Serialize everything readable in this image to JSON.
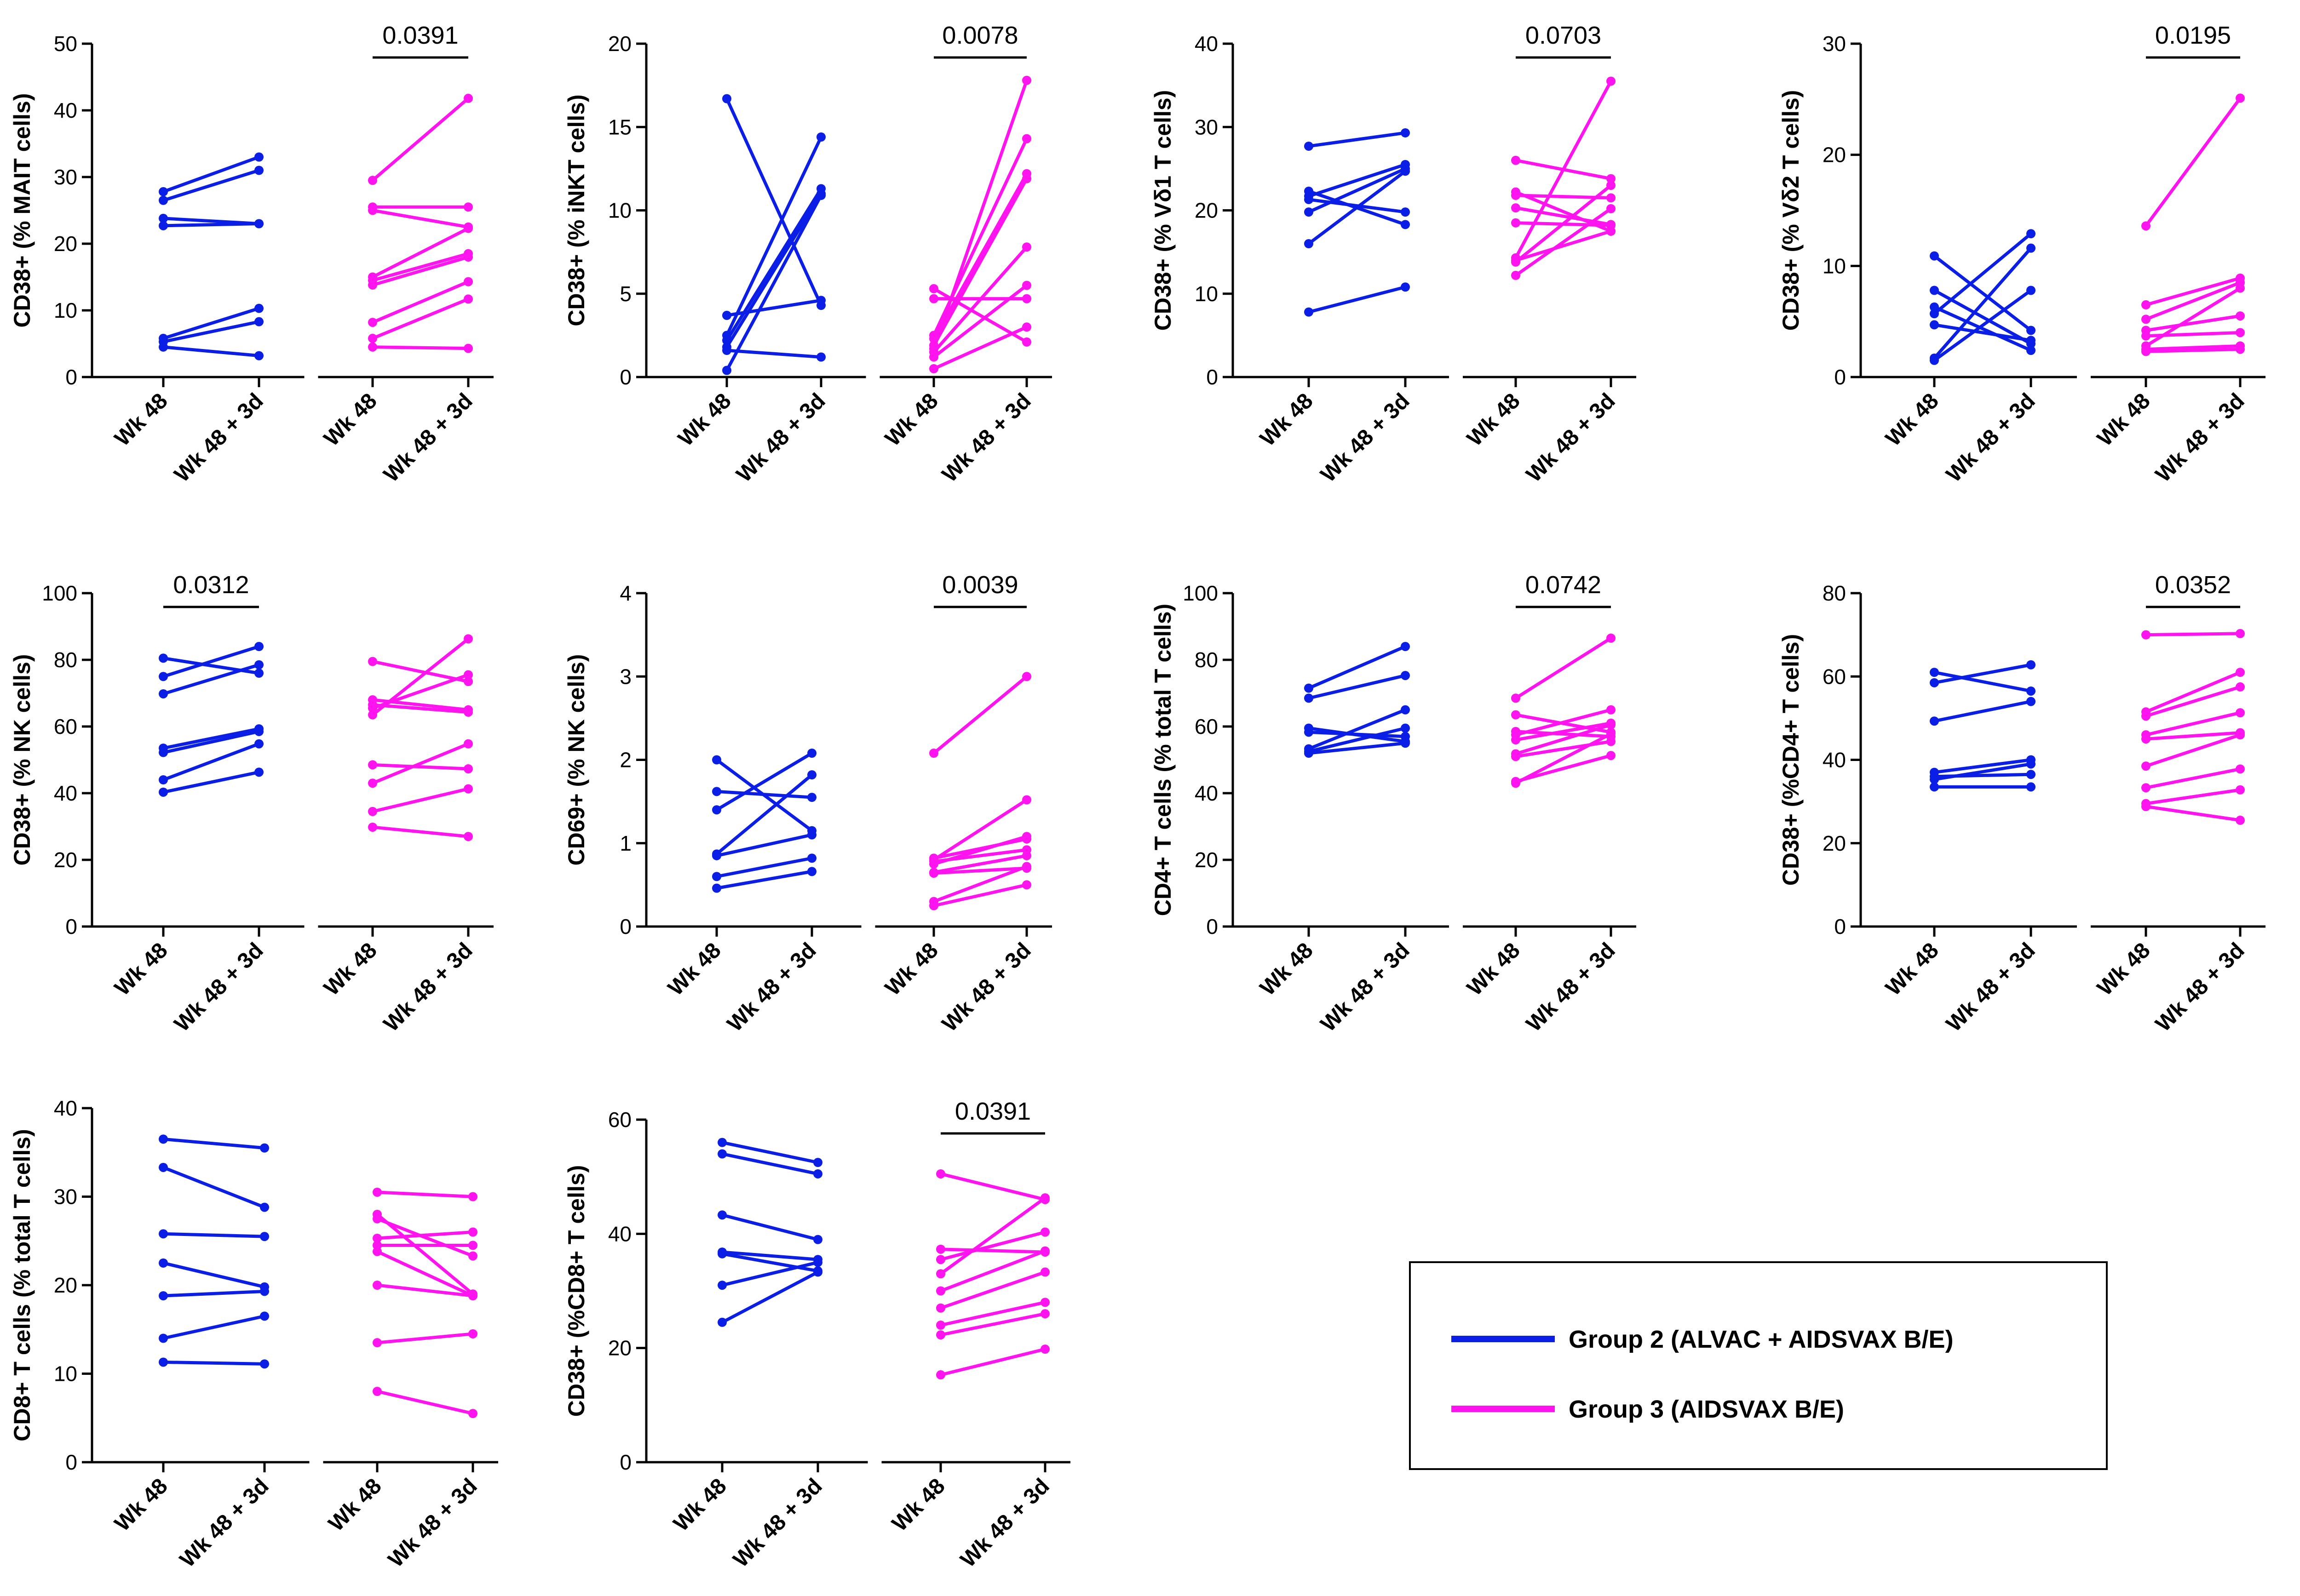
{
  "colors": {
    "group2": "#0a1ee6",
    "group3": "#ff14f0"
  },
  "legend": {
    "entries": [
      {
        "label": "Group 2 (ALVAC + AIDSVAX B/E)",
        "color": "#0a1ee6"
      },
      {
        "label": "Group 3 (AIDSVAX B/E)",
        "color": "#ff14f0"
      }
    ]
  },
  "chart_data": [
    {
      "type": "line",
      "ylabel": "CD38+ (% MAIT cells)",
      "ylim": [
        0,
        50
      ],
      "yticks": [
        0,
        10,
        20,
        30,
        40,
        50
      ],
      "categories": [
        "Wk 48",
        "Wk 48 + 3d",
        "Wk 48",
        "Wk 48 + 3d"
      ],
      "series": [
        {
          "name": "Group 2 (ALVAC + AIDSVAX B/E)",
          "pairs": [
            [
              27.8,
              33
            ],
            [
              26.5,
              31
            ],
            [
              23.8,
              23
            ],
            [
              22.7,
              23
            ],
            [
              5.8,
              10.3
            ],
            [
              5.3,
              8.3
            ],
            [
              4.5,
              3.2
            ]
          ]
        },
        {
          "name": "Group 3 (AIDSVAX B/E)",
          "pairs": [
            [
              29.5,
              41.8
            ],
            [
              25.5,
              25.5
            ],
            [
              25,
              22.5
            ],
            [
              15,
              22.3
            ],
            [
              14.5,
              18.5
            ],
            [
              13.8,
              18
            ],
            [
              8.2,
              14.3
            ],
            [
              5.8,
              11.7
            ],
            [
              4.5,
              4.3
            ]
          ]
        }
      ],
      "pvalue": {
        "text": "0.0391",
        "group": 2
      }
    },
    {
      "type": "line",
      "ylabel": "CD38+ (% iNKT cells)",
      "ylim": [
        0,
        20
      ],
      "yticks": [
        0,
        5,
        10,
        15,
        20
      ],
      "categories": [
        "Wk 48",
        "Wk 48 + 3d",
        "Wk 48",
        "Wk 48 + 3d"
      ],
      "series": [
        {
          "name": "Group 2 (ALVAC + AIDSVAX B/E)",
          "pairs": [
            [
              16.7,
              4.3
            ],
            [
              3.7,
              4.6
            ],
            [
              2.5,
              14.4
            ],
            [
              2.2,
              11.3
            ],
            [
              1.8,
              11.0
            ],
            [
              1.6,
              1.2
            ],
            [
              0.4,
              10.9
            ]
          ]
        },
        {
          "name": "Group 3 (AIDSVAX B/E)",
          "pairs": [
            [
              5.3,
              2.1
            ],
            [
              4.7,
              4.7
            ],
            [
              2.5,
              14.3
            ],
            [
              2.3,
              12.2
            ],
            [
              1.9,
              11.9
            ],
            [
              1.7,
              17.8
            ],
            [
              1.5,
              7.8
            ],
            [
              1.2,
              5.5
            ],
            [
              0.5,
              3.0
            ]
          ]
        }
      ],
      "pvalue": {
        "text": "0.0078",
        "group": 2
      }
    },
    {
      "type": "line",
      "ylabel": "CD38+ (% Vδ1 T cells)",
      "ylim": [
        0,
        40
      ],
      "yticks": [
        0,
        10,
        20,
        30,
        40
      ],
      "categories": [
        "Wk 48",
        "Wk 48 + 3d",
        "Wk 48",
        "Wk 48 + 3d"
      ],
      "series": [
        {
          "name": "Group 2 (ALVAC + AIDSVAX B/E)",
          "pairs": [
            [
              27.7,
              29.3
            ],
            [
              22.3,
              18.3
            ],
            [
              21.7,
              25.5
            ],
            [
              21.3,
              19.8
            ],
            [
              19.8,
              25.0
            ],
            [
              16.0,
              24.7
            ],
            [
              7.8,
              10.8
            ]
          ]
        },
        {
          "name": "Group 3 (AIDSVAX B/E)",
          "pairs": [
            [
              26.0,
              23.8
            ],
            [
              22.2,
              17.5
            ],
            [
              21.8,
              21.5
            ],
            [
              20.3,
              18.3
            ],
            [
              18.5,
              18.2
            ],
            [
              14.3,
              35.5
            ],
            [
              13.8,
              23.0
            ],
            [
              12.2,
              20.2
            ],
            [
              14.0,
              17.5
            ]
          ]
        }
      ],
      "pvalue": {
        "text": "0.0703",
        "group": 2
      }
    },
    {
      "type": "line",
      "ylabel": "CD38+ (% Vδ2 T cells)",
      "ylim": [
        0,
        30
      ],
      "yticks": [
        0,
        10,
        20,
        30
      ],
      "categories": [
        "Wk 48",
        "Wk 48 + 3d",
        "Wk 48",
        "Wk 48 + 3d"
      ],
      "series": [
        {
          "name": "Group 2 (ALVAC + AIDSVAX B/E)",
          "pairs": [
            [
              10.9,
              4.2
            ],
            [
              7.8,
              3.0
            ],
            [
              6.3,
              2.4
            ],
            [
              5.7,
              12.9
            ],
            [
              4.7,
              3.3
            ],
            [
              1.7,
              11.6
            ],
            [
              1.5,
              7.8
            ]
          ]
        },
        {
          "name": "Group 3 (AIDSVAX B/E)",
          "pairs": [
            [
              13.6,
              25.1
            ],
            [
              6.5,
              8.9
            ],
            [
              5.2,
              8.5
            ],
            [
              4.2,
              5.5
            ],
            [
              3.7,
              4.0
            ],
            [
              2.8,
              8.0
            ],
            [
              2.5,
              2.8
            ],
            [
              2.3,
              2.5
            ]
          ]
        }
      ],
      "pvalue": {
        "text": "0.0195",
        "group": 2
      }
    },
    {
      "type": "line",
      "ylabel": "CD38+ (% NK cells)",
      "ylim": [
        0,
        100
      ],
      "yticks": [
        0,
        20,
        40,
        60,
        80,
        100
      ],
      "categories": [
        "Wk 48",
        "Wk 48 + 3d",
        "Wk 48",
        "Wk 48 + 3d"
      ],
      "series": [
        {
          "name": "Group 2 (ALVAC + AIDSVAX B/E)",
          "pairs": [
            [
              80.5,
              76.0
            ],
            [
              75.0,
              84.0
            ],
            [
              69.8,
              78.5
            ],
            [
              53.5,
              59.3
            ],
            [
              52.2,
              58.5
            ],
            [
              44.0,
              54.8
            ],
            [
              40.3,
              46.3
            ]
          ]
        },
        {
          "name": "Group 3 (AIDSVAX B/E)",
          "pairs": [
            [
              79.5,
              73.5
            ],
            [
              68.0,
              65.0
            ],
            [
              66.5,
              64.3
            ],
            [
              63.5,
              86.3
            ],
            [
              48.5,
              47.3
            ],
            [
              43.0,
              54.8
            ],
            [
              34.5,
              41.3
            ],
            [
              29.8,
              27.0
            ],
            [
              65.5,
              75.5
            ]
          ]
        }
      ],
      "pvalue": {
        "text": "0.0312",
        "group": 1
      }
    },
    {
      "type": "line",
      "ylabel": "CD69+ (% NK cells)",
      "ylim": [
        0,
        4
      ],
      "yticks": [
        0,
        1,
        2,
        3,
        4
      ],
      "categories": [
        "Wk 48",
        "Wk 48 + 3d",
        "Wk 48",
        "Wk 48 + 3d"
      ],
      "series": [
        {
          "name": "Group 2 (ALVAC + AIDSVAX B/E)",
          "pairs": [
            [
              2.0,
              1.15
            ],
            [
              1.62,
              1.55
            ],
            [
              1.4,
              2.08
            ],
            [
              0.87,
              1.82
            ],
            [
              0.85,
              1.1
            ],
            [
              0.6,
              0.82
            ],
            [
              0.46,
              0.66
            ]
          ]
        },
        {
          "name": "Group 3 (AIDSVAX B/E)",
          "pairs": [
            [
              2.08,
              3.0
            ],
            [
              0.82,
              1.05
            ],
            [
              0.8,
              1.52
            ],
            [
              0.78,
              0.92
            ],
            [
              0.75,
              1.08
            ],
            [
              0.65,
              0.85
            ],
            [
              0.64,
              0.7
            ],
            [
              0.3,
              0.72
            ],
            [
              0.25,
              0.5
            ]
          ]
        }
      ],
      "pvalue": {
        "text": "0.0039",
        "group": 2
      }
    },
    {
      "type": "line",
      "ylabel": "CD4+ T cells (% total T cells)",
      "ylim": [
        0,
        100
      ],
      "yticks": [
        0,
        20,
        40,
        60,
        80,
        100
      ],
      "categories": [
        "Wk 48",
        "Wk 48 + 3d",
        "Wk 48",
        "Wk 48 + 3d"
      ],
      "series": [
        {
          "name": "Group 2 (ALVAC + AIDSVAX B/E)",
          "pairs": [
            [
              71.5,
              84.0
            ],
            [
              68.5,
              75.3
            ],
            [
              59.5,
              55.5
            ],
            [
              58.3,
              57.0
            ],
            [
              53.3,
              65.0
            ],
            [
              52.5,
              59.5
            ],
            [
              52.0,
              55.0
            ]
          ]
        },
        {
          "name": "Group 3 (AIDSVAX B/E)",
          "pairs": [
            [
              68.5,
              86.5
            ],
            [
              63.5,
              58.3
            ],
            [
              58.5,
              57.0
            ],
            [
              57.5,
              65.0
            ],
            [
              56.0,
              61.0
            ],
            [
              51.8,
              60.5
            ],
            [
              51.0,
              55.5
            ],
            [
              43.5,
              51.3
            ],
            [
              43.0,
              57.8
            ]
          ]
        }
      ],
      "pvalue": {
        "text": "0.0742",
        "group": 2
      }
    },
    {
      "type": "line",
      "ylabel": "CD38+ (%CD4+ T cells)",
      "ylim": [
        0,
        80
      ],
      "yticks": [
        0,
        20,
        40,
        60,
        80
      ],
      "categories": [
        "Wk 48",
        "Wk 48 + 3d",
        "Wk 48",
        "Wk 48 + 3d"
      ],
      "series": [
        {
          "name": "Group 2 (ALVAC + AIDSVAX B/E)",
          "pairs": [
            [
              61.0,
              56.5
            ],
            [
              58.5,
              62.8
            ],
            [
              49.3,
              54.0
            ],
            [
              37.0,
              40.0
            ],
            [
              36.0,
              36.5
            ],
            [
              35.3,
              39.0
            ],
            [
              33.5,
              33.5
            ]
          ]
        },
        {
          "name": "Group 3 (AIDSVAX B/E)",
          "pairs": [
            [
              70.0,
              70.3
            ],
            [
              51.5,
              61.0
            ],
            [
              50.5,
              57.5
            ],
            [
              46.0,
              51.3
            ],
            [
              45.0,
              46.5
            ],
            [
              38.5,
              46.0
            ],
            [
              33.3,
              37.8
            ],
            [
              29.5,
              32.8
            ],
            [
              28.8,
              25.5
            ]
          ]
        }
      ],
      "pvalue": {
        "text": "0.0352",
        "group": 2
      }
    },
    {
      "type": "line",
      "ylabel": "CD8+ T cells (% total T cells)",
      "ylim": [
        0,
        40
      ],
      "yticks": [
        0,
        10,
        20,
        30,
        40
      ],
      "categories": [
        "Wk 48",
        "Wk 48 + 3d",
        "Wk 48",
        "Wk 48 + 3d"
      ],
      "series": [
        {
          "name": "Group 2 (ALVAC + AIDSVAX B/E)",
          "pairs": [
            [
              36.5,
              35.5
            ],
            [
              33.3,
              28.8
            ],
            [
              25.8,
              25.5
            ],
            [
              22.5,
              19.8
            ],
            [
              18.8,
              19.3
            ],
            [
              14.0,
              16.5
            ],
            [
              11.3,
              11.1
            ]
          ]
        },
        {
          "name": "Group 3 (AIDSVAX B/E)",
          "pairs": [
            [
              30.5,
              30.0
            ],
            [
              28.0,
              19.0
            ],
            [
              27.5,
              23.3
            ],
            [
              25.3,
              26.0
            ],
            [
              24.5,
              24.5
            ],
            [
              23.8,
              18.8
            ],
            [
              20.0,
              18.8
            ],
            [
              13.5,
              14.5
            ],
            [
              8.0,
              5.5
            ]
          ]
        }
      ]
    },
    {
      "type": "line",
      "ylabel": "CD38+ (%CD8+ T cells)",
      "ylim": [
        0,
        60
      ],
      "yticks": [
        0,
        20,
        40,
        60
      ],
      "categories": [
        "Wk 48",
        "Wk 48 + 3d",
        "Wk 48",
        "Wk 48 + 3d"
      ],
      "series": [
        {
          "name": "Group 2 (ALVAC + AIDSVAX B/E)",
          "pairs": [
            [
              56.0,
              52.5
            ],
            [
              54.0,
              50.5
            ],
            [
              43.3,
              39.0
            ],
            [
              36.8,
              35.5
            ],
            [
              36.5,
              33.5
            ],
            [
              31.0,
              35.0
            ],
            [
              24.5,
              33.3
            ]
          ]
        },
        {
          "name": "Group 3 (AIDSVAX B/E)",
          "pairs": [
            [
              50.5,
              46.0
            ],
            [
              37.3,
              36.8
            ],
            [
              35.5,
              40.3
            ],
            [
              33.0,
              46.3
            ],
            [
              30.0,
              37.0
            ],
            [
              27.0,
              33.3
            ],
            [
              24.0,
              28.0
            ],
            [
              22.3,
              26.0
            ],
            [
              15.3,
              19.8
            ]
          ]
        }
      ],
      "pvalue": {
        "text": "0.0391",
        "group": 2
      }
    }
  ]
}
